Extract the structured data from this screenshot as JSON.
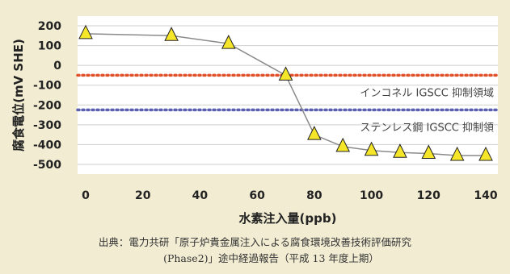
{
  "chart_data": {
    "type": "line",
    "xlabel": "水素注入量(ppb)",
    "ylabel": "腐食電位(mV SHE)",
    "xlim": [
      0,
      140
    ],
    "ylim": [
      -500,
      200
    ],
    "x_ticks": [
      "0",
      "20",
      "40",
      "60",
      "80",
      "100",
      "120",
      "140"
    ],
    "y_ticks": [
      "200",
      "100",
      "0",
      "-100",
      "-200",
      "-300",
      "-400",
      "-500"
    ],
    "grid": "horizontal",
    "series": [
      {
        "color": "#8a8a8a",
        "marker": "yellow-triangle",
        "x": [
          0,
          30,
          50,
          70,
          80,
          90,
          100,
          110,
          120,
          130,
          140
        ],
        "y": [
          160,
          150,
          110,
          -50,
          -350,
          -410,
          -430,
          -440,
          -445,
          -455,
          -455
        ]
      }
    ],
    "reference_lines": [
      {
        "label": "インコネル IGSCC 抑制領域",
        "y": -50,
        "color": "#e0502a"
      },
      {
        "label": "ステンレス鋼 IGSCC 抑制領",
        "y": -225,
        "color": "#5a5fb0"
      }
    ]
  },
  "caption": {
    "line1": "出典：電力共研「原子炉貴金属注入による腐食環境改善技術評価研究",
    "line2": "(Phase2)」途中経過報告（平成 13 年度上期）"
  }
}
